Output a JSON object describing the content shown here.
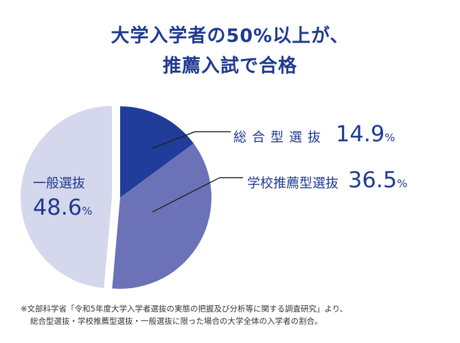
{
  "title": {
    "line1": "大学入学者の50%以上が、",
    "line2": "推薦入試で合格"
  },
  "chart_data": {
    "type": "pie",
    "slices": [
      {
        "label": "総合型選抜",
        "value": 14.9,
        "display": "14.9",
        "color": "#1f3d99"
      },
      {
        "label": "学校推薦型選抜",
        "value": 36.5,
        "display": "36.5",
        "color": "#6b72b8"
      },
      {
        "label": "一般選抜",
        "value": 48.6,
        "display": "48.6",
        "color": "#d5d7ec"
      }
    ],
    "unit": "%",
    "exploded": "一般選抜"
  },
  "footnote": {
    "line1": "※文部科学省「令和5年度大学入学者選抜の実態の把握及び分析等に関する調査研究」より、",
    "line2": "総合型選抜・学校推薦型選抜・一般選抜に限った場合の大学全体の入学者の割合。"
  }
}
